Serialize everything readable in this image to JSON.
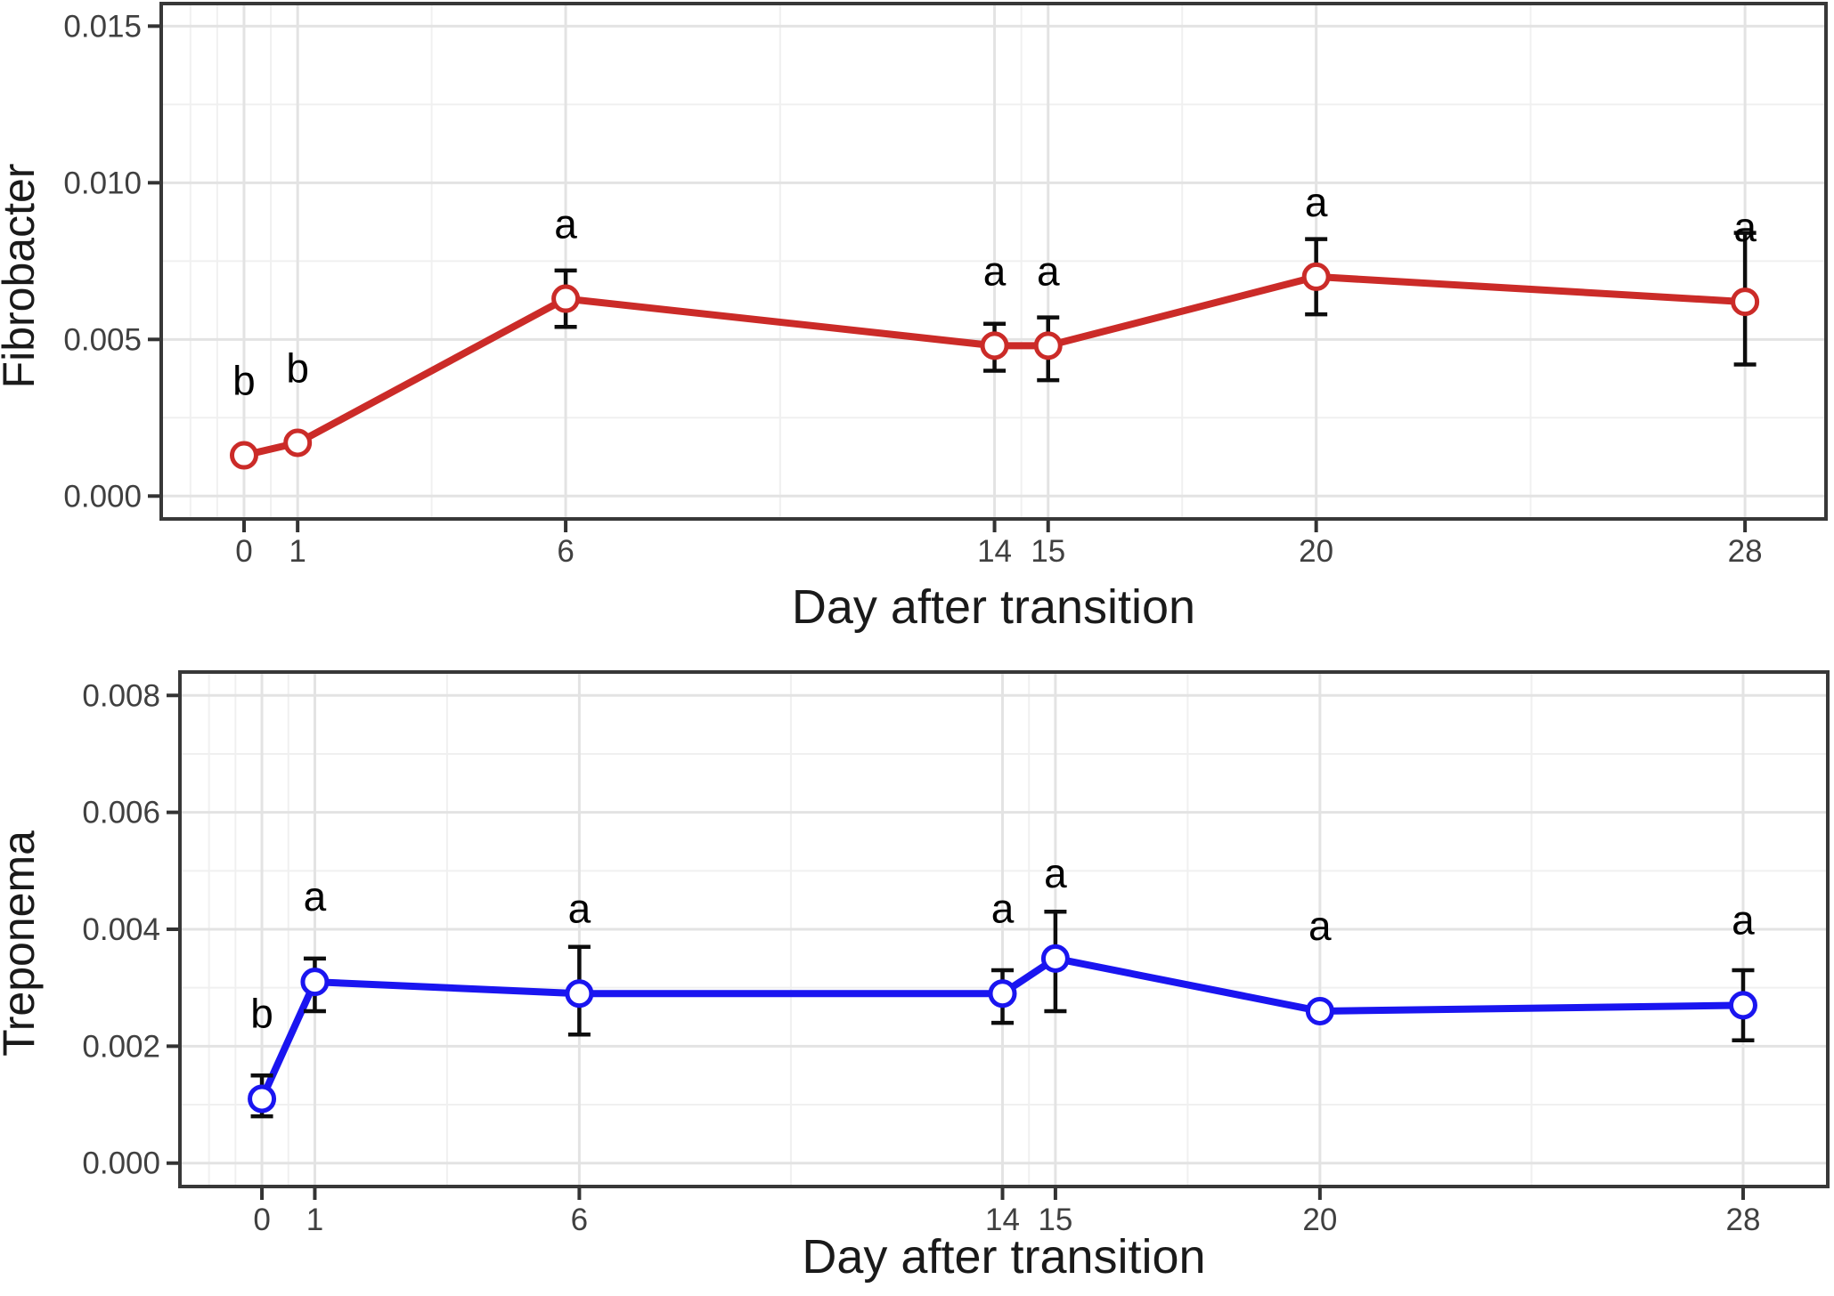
{
  "figure": {
    "background": "#ffffff",
    "text_color": "#404040",
    "axis_title_color": "#1a1a1a",
    "panel_border_color": "#383838",
    "grid_major_color": "#e3e3e3",
    "grid_minor_color": "#f0f0f0",
    "error_bar_color": "#0d0d0d"
  },
  "chart_data": [
    {
      "type": "line",
      "panel": "top",
      "ylabel": "Fibrobacter",
      "xlabel": "Day after transition",
      "legend": "none",
      "grid": "major+minor",
      "marker": "open-circle",
      "series": [
        {
          "name": "Fibrobacter",
          "color": "#cb2b28"
        }
      ],
      "x": [
        0,
        1,
        6,
        14,
        15,
        20,
        28
      ],
      "x_tick_labels": [
        "0",
        "1",
        "6",
        "14",
        "15",
        "20",
        "28"
      ],
      "y_tick_values": [
        0,
        0.005,
        0.01,
        0.015
      ],
      "y_tick_labels": [
        "0.000",
        "0.005",
        "0.010",
        "0.015"
      ],
      "x_minor": [
        -1,
        -0.5,
        0.5,
        3.5,
        10,
        14.5,
        17.5,
        24
      ],
      "y_minor": [
        0.0025,
        0.0075,
        0.0125
      ],
      "xlim": [
        -1.545,
        29.51
      ],
      "ylim": [
        -0.00073,
        0.01572
      ],
      "points": [
        {
          "day": 0,
          "mean": 0.0013,
          "lo": null,
          "hi": null,
          "sig": "b"
        },
        {
          "day": 1,
          "mean": 0.0017,
          "lo": null,
          "hi": null,
          "sig": "b"
        },
        {
          "day": 6,
          "mean": 0.0063,
          "lo": 0.0054,
          "hi": 0.0072,
          "sig": "a"
        },
        {
          "day": 14,
          "mean": 0.0048,
          "lo": 0.004,
          "hi": 0.0055,
          "sig": "a"
        },
        {
          "day": 15,
          "mean": 0.0048,
          "lo": 0.0037,
          "hi": 0.0057,
          "sig": "a"
        },
        {
          "day": 20,
          "mean": 0.007,
          "lo": 0.0058,
          "hi": 0.0082,
          "sig": "a"
        },
        {
          "day": 28,
          "mean": 0.0062,
          "lo": 0.0042,
          "hi": 0.0084,
          "sig": "a"
        }
      ]
    },
    {
      "type": "line",
      "panel": "bottom",
      "ylabel": "Treponema",
      "xlabel": "Day after transition",
      "legend": "none",
      "grid": "major+minor",
      "marker": "open-circle",
      "series": [
        {
          "name": "Treponema",
          "color": "#1a15f0"
        }
      ],
      "x": [
        0,
        1,
        6,
        14,
        15,
        20,
        28
      ],
      "x_tick_labels": [
        "0",
        "1",
        "6",
        "14",
        "15",
        "20",
        "28"
      ],
      "y_tick_values": [
        0,
        0.002,
        0.004,
        0.006,
        0.008
      ],
      "y_tick_labels": [
        "0.000",
        "0.002",
        "0.004",
        "0.006",
        "0.008"
      ],
      "x_minor": [
        -1,
        -0.5,
        0.5,
        3.5,
        10,
        14.5,
        17.5,
        24
      ],
      "y_minor": [
        0.001,
        0.003,
        0.005,
        0.007
      ],
      "xlim": [
        -1.55,
        29.6
      ],
      "ylim": [
        -0.0004,
        0.0084
      ],
      "points": [
        {
          "day": 0,
          "mean": 0.0011,
          "lo": 0.0008,
          "hi": 0.0015,
          "sig": "b"
        },
        {
          "day": 1,
          "mean": 0.0031,
          "lo": 0.0026,
          "hi": 0.0035,
          "sig": "a"
        },
        {
          "day": 6,
          "mean": 0.0029,
          "lo": 0.0022,
          "hi": 0.0037,
          "sig": "a"
        },
        {
          "day": 14,
          "mean": 0.0029,
          "lo": 0.0024,
          "hi": 0.0033,
          "sig": "a"
        },
        {
          "day": 15,
          "mean": 0.0035,
          "lo": 0.0026,
          "hi": 0.0043,
          "sig": "a"
        },
        {
          "day": 20,
          "mean": 0.0026,
          "lo": null,
          "hi": null,
          "sig": "a"
        },
        {
          "day": 28,
          "mean": 0.0027,
          "lo": 0.0021,
          "hi": 0.0033,
          "sig": "a"
        }
      ]
    }
  ]
}
